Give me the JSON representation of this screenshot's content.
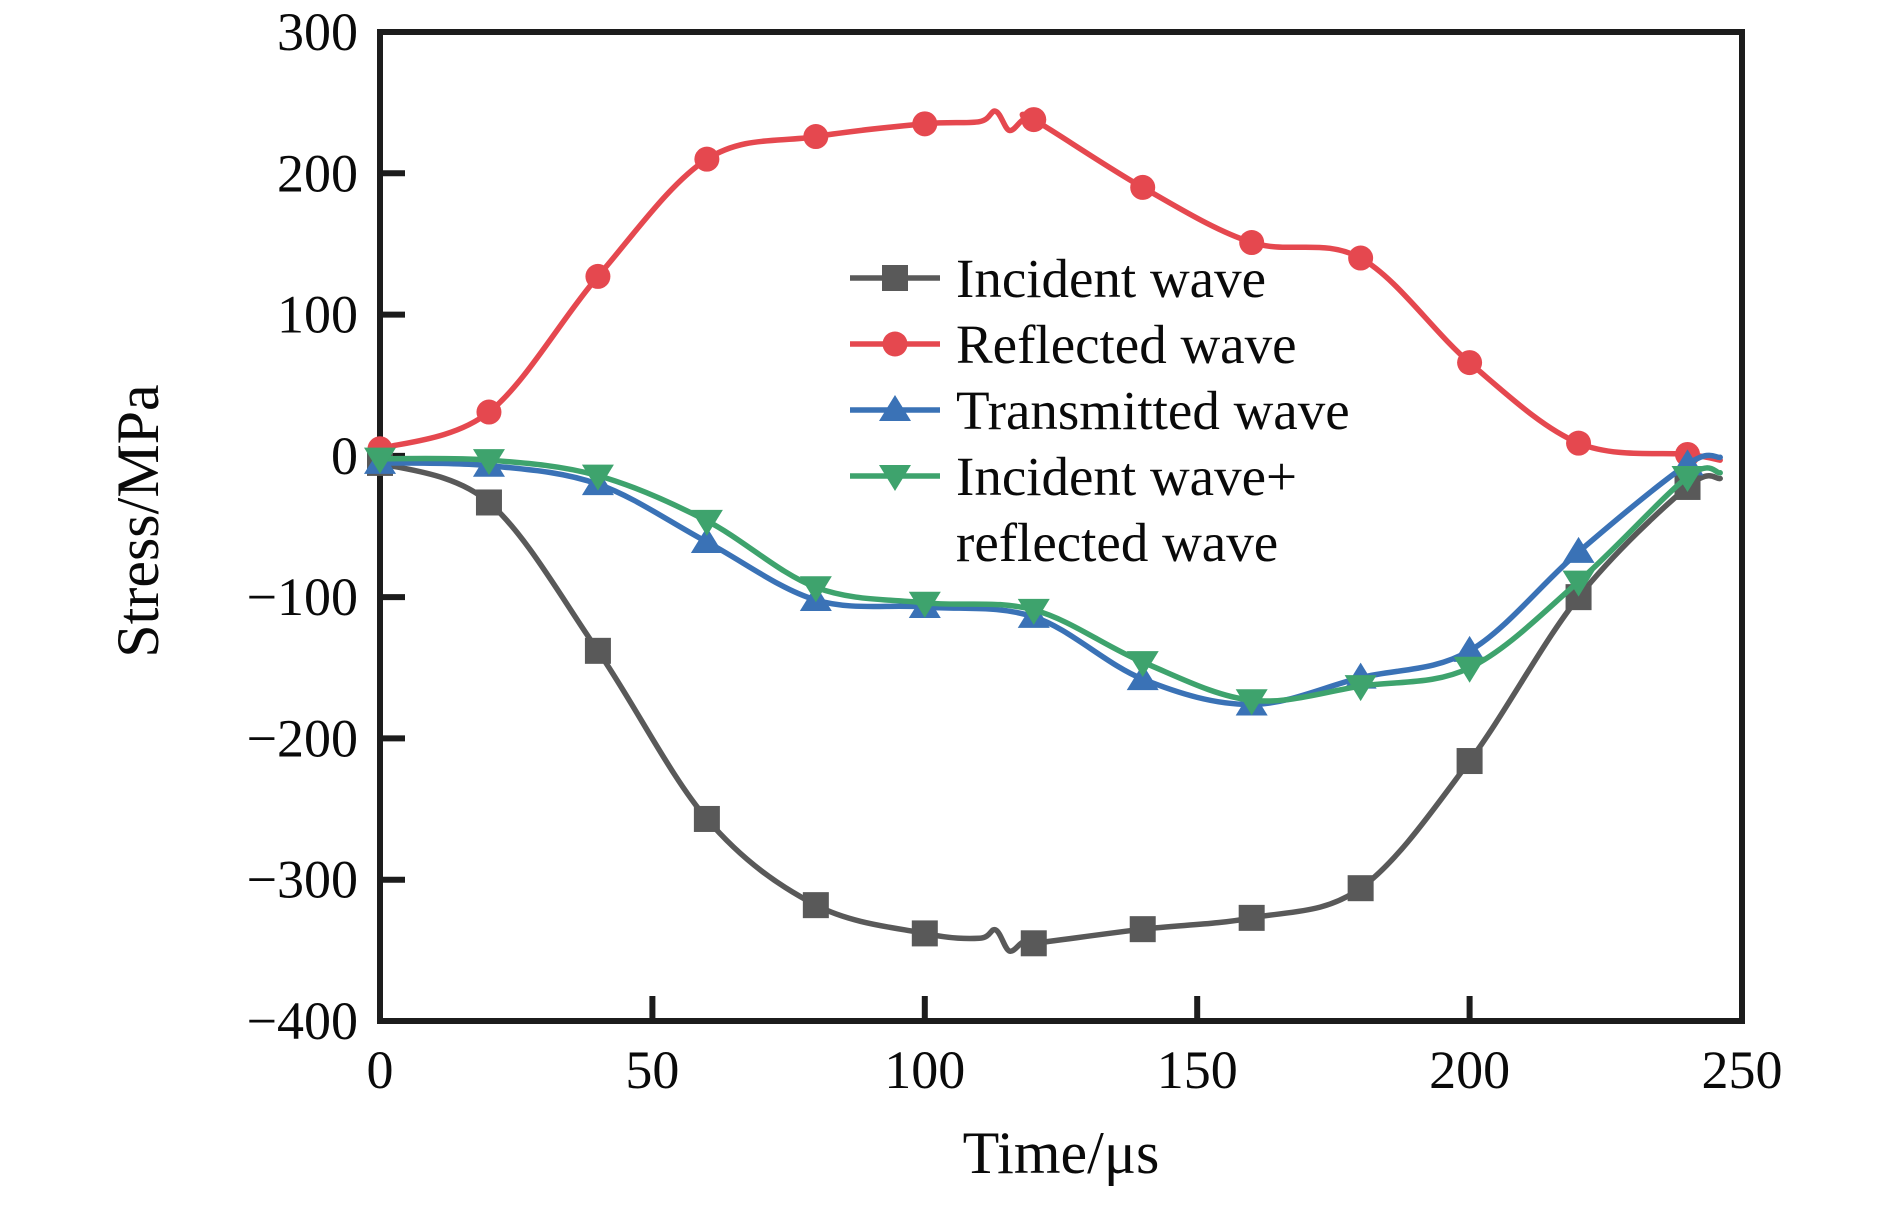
{
  "figure": {
    "xlabel": "Time/μs",
    "ylabel": "Stress/MPa"
  },
  "chart_data": {
    "type": "line",
    "title": "",
    "xlabel": "Time/μs",
    "ylabel": "Stress/MPa",
    "xlim": [
      0,
      250
    ],
    "ylim": [
      -400,
      300
    ],
    "x_ticks": [
      0,
      50,
      100,
      150,
      200,
      250
    ],
    "y_ticks": [
      300,
      200,
      100,
      0,
      -100,
      -200,
      -300,
      -400
    ],
    "grid": false,
    "legend_position": "center-right",
    "x": [
      0,
      20,
      40,
      60,
      80,
      100,
      120,
      140,
      160,
      180,
      200,
      220,
      240
    ],
    "series": [
      {
        "name": "Incident wave",
        "legend_lines": [
          "Incident wave"
        ],
        "color": "#595959",
        "marker": "square",
        "values": [
          -5,
          -33,
          -138,
          -257,
          -318,
          -338,
          -345,
          -335,
          -327,
          -306,
          -216,
          -100,
          -22
        ],
        "tail": {
          "t": 246,
          "v": -16
        },
        "squiggle": {
          "t": 114,
          "amp": 7
        }
      },
      {
        "name": "Reflected wave",
        "legend_lines": [
          "Reflected wave"
        ],
        "color": "#e5484f",
        "marker": "circle",
        "values": [
          5,
          31,
          127,
          210,
          226,
          235,
          238,
          190,
          151,
          140,
          66,
          9,
          1
        ],
        "tail": {
          "t": 246,
          "v": -3
        },
        "squiggle": {
          "t": 114,
          "amp": 7
        }
      },
      {
        "name": "Transmitted wave",
        "legend_lines": [
          "Transmitted wave"
        ],
        "color": "#3a72b6",
        "marker": "triangle-up",
        "values": [
          -5,
          -7,
          -20,
          -61,
          -102,
          -107,
          -114,
          -158,
          -176,
          -157,
          -138,
          -68,
          -6
        ],
        "tail": {
          "t": 246,
          "v": -1
        },
        "squiggle": null
      },
      {
        "name": "Incident wave+ reflected wave",
        "legend_lines": [
          "Incident wave+",
          "reflected wave"
        ],
        "color": "#3ea36d",
        "marker": "triangle-down",
        "values": [
          -2,
          -3,
          -14,
          -46,
          -93,
          -104,
          -109,
          -146,
          -173,
          -163,
          -150,
          -89,
          -15
        ],
        "tail": {
          "t": 246,
          "v": -12
        },
        "squiggle": null
      }
    ]
  },
  "style": {
    "axis_color": "#1c1c1c",
    "background": "#ffffff"
  }
}
